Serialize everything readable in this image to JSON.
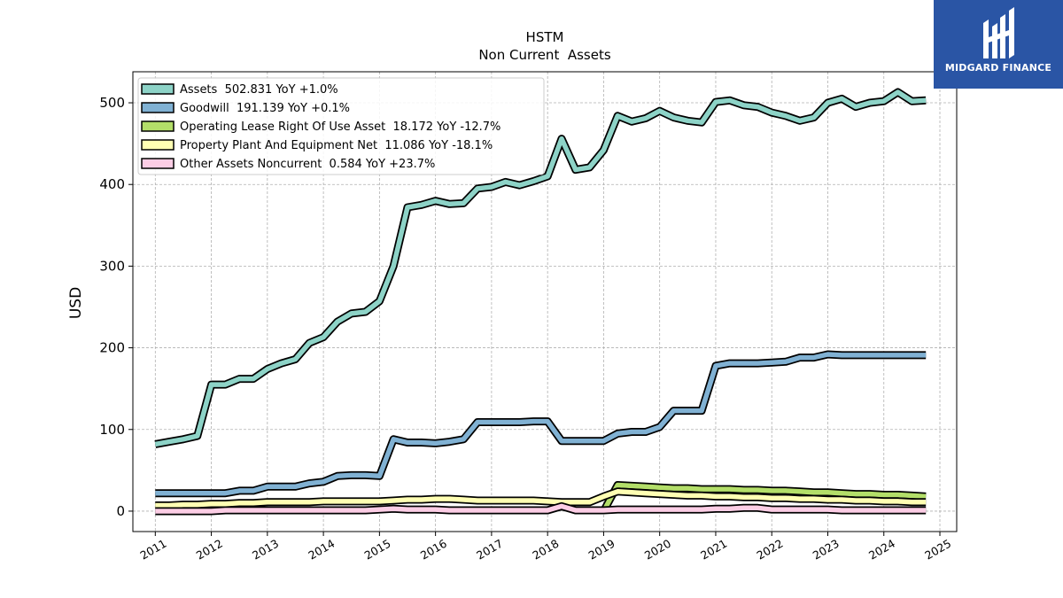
{
  "brand": {
    "name": "MIDGARD FINANCE",
    "bg_color": "#2a55a5"
  },
  "chart_data": {
    "type": "line",
    "title": "HSTM",
    "subtitle": "Non Current  Assets",
    "ylabel": "USD",
    "xlabel": "",
    "xlim": [
      2010.6,
      2025.3
    ],
    "ylim": [
      -25,
      538
    ],
    "y_ticks": [
      0,
      100,
      200,
      300,
      400,
      500
    ],
    "x_ticks": [
      2011,
      2012,
      2013,
      2014,
      2015,
      2016,
      2017,
      2018,
      2019,
      2020,
      2021,
      2022,
      2023,
      2024,
      2025
    ],
    "grid": true,
    "legend_position": "top-left",
    "series": [
      {
        "name": "Assets  502.831 YoY +1.0%",
        "color": "#8dd3c7",
        "x": [
          2011.0,
          2011.25,
          2011.5,
          2011.75,
          2012.0,
          2012.25,
          2012.5,
          2012.75,
          2013.0,
          2013.25,
          2013.5,
          2013.75,
          2014.0,
          2014.25,
          2014.5,
          2014.75,
          2015.0,
          2015.25,
          2015.5,
          2015.75,
          2016.0,
          2016.25,
          2016.5,
          2016.75,
          2017.0,
          2017.25,
          2017.5,
          2017.75,
          2018.0,
          2018.25,
          2018.5,
          2018.75,
          2019.0,
          2019.25,
          2019.5,
          2019.75,
          2020.0,
          2020.25,
          2020.5,
          2020.75,
          2021.0,
          2021.25,
          2021.5,
          2021.75,
          2022.0,
          2022.25,
          2022.5,
          2022.75,
          2023.0,
          2023.25,
          2023.5,
          2023.75,
          2024.0,
          2024.25,
          2024.5,
          2024.75
        ],
        "values": [
          82,
          85,
          88,
          92,
          155,
          155,
          162,
          162,
          174,
          181,
          186,
          206,
          213,
          232,
          242,
          244,
          257,
          300,
          372,
          375,
          380,
          376,
          377,
          395,
          397,
          403,
          399,
          404,
          410,
          456,
          418,
          421,
          442,
          484,
          477,
          481,
          490,
          482,
          478,
          476,
          501,
          503,
          497,
          495,
          488,
          484,
          478,
          482,
          500,
          505,
          495,
          500,
          502,
          513,
          502,
          503
        ]
      },
      {
        "name": "Goodwill  191.139 YoY +0.1%",
        "color": "#80b1d3",
        "x": [
          2011.0,
          2011.25,
          2011.5,
          2011.75,
          2012.0,
          2012.25,
          2012.5,
          2012.75,
          2013.0,
          2013.25,
          2013.5,
          2013.75,
          2014.0,
          2014.25,
          2014.5,
          2014.75,
          2015.0,
          2015.25,
          2015.5,
          2015.75,
          2016.0,
          2016.25,
          2016.5,
          2016.75,
          2017.0,
          2017.25,
          2017.5,
          2017.75,
          2018.0,
          2018.25,
          2018.5,
          2018.75,
          2019.0,
          2019.25,
          2019.5,
          2019.75,
          2020.0,
          2020.25,
          2020.5,
          2020.75,
          2021.0,
          2021.25,
          2021.5,
          2021.75,
          2022.0,
          2022.25,
          2022.5,
          2022.75,
          2023.0,
          2023.25,
          2023.5,
          2023.75,
          2024.0,
          2024.25,
          2024.5,
          2024.75
        ],
        "values": [
          22,
          22,
          22,
          22,
          22,
          22,
          25,
          25,
          30,
          30,
          30,
          34,
          36,
          43,
          44,
          44,
          43,
          88,
          84,
          84,
          83,
          85,
          88,
          109,
          109,
          109,
          109,
          110,
          110,
          86,
          86,
          86,
          86,
          95,
          97,
          97,
          103,
          123,
          123,
          123,
          178,
          181,
          181,
          181,
          182,
          183,
          188,
          188,
          192,
          191,
          191,
          191,
          191,
          191,
          191,
          191
        ]
      },
      {
        "name": "Operating Lease Right Of Use Asset  18.172 YoY -12.7%",
        "color": "#b3de69",
        "x": [
          2019.0,
          2019.25,
          2019.5,
          2019.75,
          2020.0,
          2020.25,
          2020.5,
          2020.75,
          2021.0,
          2021.25,
          2021.5,
          2021.75,
          2022.0,
          2022.25,
          2022.5,
          2022.75,
          2023.0,
          2023.25,
          2023.5,
          2023.75,
          2024.0,
          2024.25,
          2024.5,
          2024.75
        ],
        "values": [
          0,
          32,
          31,
          30,
          29,
          28,
          28,
          27,
          27,
          27,
          26,
          26,
          25,
          25,
          24,
          23,
          23,
          22,
          21,
          21,
          20,
          20,
          19,
          18
        ]
      },
      {
        "name": "Property Plant And Equipment Net  11.086 YoY -18.1%",
        "color": "#ffffb3",
        "x": [
          2011.0,
          2011.25,
          2011.5,
          2011.75,
          2012.0,
          2012.25,
          2012.5,
          2012.75,
          2013.0,
          2013.25,
          2013.5,
          2013.75,
          2014.0,
          2014.25,
          2014.5,
          2014.75,
          2015.0,
          2015.25,
          2015.5,
          2015.75,
          2016.0,
          2016.25,
          2016.5,
          2016.75,
          2017.0,
          2017.25,
          2017.5,
          2017.75,
          2018.0,
          2018.25,
          2018.5,
          2018.75,
          2019.0,
          2019.25,
          2019.5,
          2019.75,
          2020.0,
          2020.25,
          2020.5,
          2020.75,
          2021.0,
          2021.25,
          2021.5,
          2021.75,
          2022.0,
          2022.25,
          2022.5,
          2022.75,
          2023.0,
          2023.25,
          2023.5,
          2023.75,
          2024.0,
          2024.25,
          2024.5,
          2024.75
        ],
        "values": [
          7,
          7,
          8,
          8,
          9,
          9,
          10,
          10,
          11,
          11,
          11,
          11,
          12,
          12,
          12,
          12,
          12,
          13,
          14,
          14,
          15,
          15,
          14,
          13,
          13,
          13,
          13,
          13,
          12,
          11,
          11,
          11,
          18,
          24,
          23,
          22,
          21,
          20,
          19,
          19,
          18,
          18,
          17,
          17,
          16,
          16,
          15,
          15,
          14,
          14,
          13,
          13,
          12,
          12,
          11,
          11
        ]
      },
      {
        "name": "Other Assets Noncurrent  0.584 YoY +23.7%",
        "color": "#fccde5",
        "x": [
          2011.0,
          2011.25,
          2011.5,
          2011.75,
          2012.0,
          2012.25,
          2012.5,
          2012.75,
          2013.0,
          2013.25,
          2013.5,
          2013.75,
          2014.0,
          2014.25,
          2014.5,
          2014.75,
          2015.0,
          2015.25,
          2015.5,
          2015.75,
          2016.0,
          2016.25,
          2016.5,
          2016.75,
          2017.0,
          2017.25,
          2017.5,
          2017.75,
          2018.0,
          2018.25,
          2018.5,
          2018.75,
          2019.0,
          2019.25,
          2019.5,
          2019.75,
          2020.0,
          2020.25,
          2020.5,
          2020.75,
          2021.0,
          2021.25,
          2021.5,
          2021.75,
          2022.0,
          2022.25,
          2022.5,
          2022.75,
          2023.0,
          2023.25,
          2023.5,
          2023.75,
          2024.0,
          2024.25,
          2024.5,
          2024.75
        ],
        "values": [
          0,
          0,
          0,
          0,
          0,
          1,
          1,
          1,
          1,
          1,
          1,
          1,
          1,
          1,
          1,
          1,
          2,
          3,
          2,
          2,
          2,
          1,
          1,
          1,
          1,
          1,
          1,
          1,
          1,
          6,
          1,
          1,
          1,
          2,
          2,
          2,
          2,
          2,
          2,
          2,
          3,
          3,
          4,
          4,
          2,
          2,
          2,
          2,
          2,
          1,
          1,
          1,
          1,
          1,
          1,
          1
        ]
      }
    ]
  }
}
